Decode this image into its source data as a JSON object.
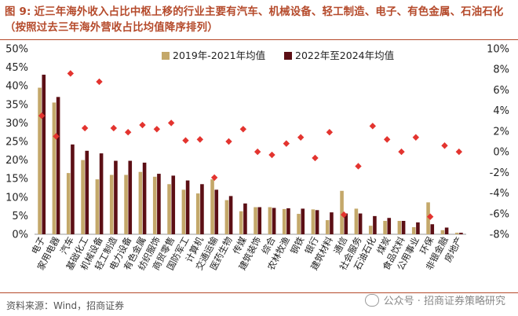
{
  "header": {
    "fig_label": "图 9:",
    "title": "近三年海外收入占比中枢上移的行业主要有汽车、机械设备、轻工制造、电子、有色金属、石油石化（按照过去三年海外营收占比均值降序排列）"
  },
  "footer": {
    "source": "资料来源：Wind，招商证券",
    "watermark": "公众号 · 招商证券策略研究"
  },
  "colors": {
    "title": "#b54a2b",
    "series1": "#c4a86a",
    "series2": "#5c0f15",
    "diamond": "#e3342f"
  },
  "chart_data": {
    "type": "bar",
    "categories": [
      "电子",
      "家用电器",
      "汽车",
      "基础化工",
      "机械设备",
      "轻工制造",
      "电力设备",
      "有色金属",
      "纺织服饰",
      "商贸零售",
      "国防军工",
      "计算机",
      "交通运输",
      "医药生物",
      "传媒",
      "建筑装饰",
      "综合",
      "农林牧渔",
      "钢铁",
      "银行",
      "建筑材料",
      "通信",
      "社会服务",
      "石油石化",
      "煤炭",
      "食品饮料",
      "公用事业",
      "环保",
      "非银金融",
      "房地产"
    ],
    "series": [
      {
        "name": "2019年-2021年均值",
        "axis": "left",
        "values": [
          39.5,
          35.5,
          16.5,
          20.0,
          14.8,
          16.0,
          16.0,
          16.8,
          15.5,
          13.5,
          12.0,
          11.0,
          14.8,
          9.2,
          6.2,
          7.3,
          7.3,
          6.8,
          5.5,
          6.7,
          3.8,
          11.7,
          6.9,
          2.3,
          3.6,
          3.6,
          1.9,
          8.6,
          1.1,
          0.4
        ]
      },
      {
        "name": "2022年至2024年均值",
        "axis": "left",
        "values": [
          43.0,
          37.0,
          24.2,
          22.5,
          21.8,
          19.8,
          19.8,
          19.3,
          16.3,
          15.8,
          14.5,
          13.5,
          12.0,
          10.3,
          8.3,
          7.3,
          7.1,
          7.0,
          6.9,
          6.5,
          5.9,
          5.6,
          5.6,
          4.9,
          4.4,
          3.6,
          3.2,
          2.7,
          1.8,
          0.4
        ]
      },
      {
        "type": "scatter",
        "axis": "right",
        "values": [
          3.5,
          1.5,
          7.6,
          2.3,
          6.8,
          2.3,
          1.9,
          2.6,
          2.2,
          2.8,
          1.1,
          1.2,
          -2.5,
          1.0,
          2.2,
          0.0,
          -0.3,
          0.8,
          1.4,
          -0.6,
          1.9,
          -6.1,
          -1.4,
          2.5,
          1.2,
          0.0,
          1.4,
          -6.3,
          0.6,
          0.0
        ]
      }
    ],
    "y_left": {
      "min": 0,
      "max": 50,
      "step": 5,
      "format": "%"
    },
    "y_right": {
      "min": -8,
      "max": 10,
      "step": 2,
      "format": "%"
    },
    "legend_position": "top-center",
    "grid": false
  }
}
